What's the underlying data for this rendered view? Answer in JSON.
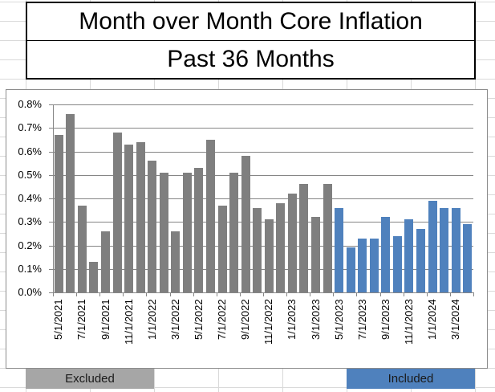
{
  "header": {
    "title": "Month over Month Core Inflation",
    "subtitle": "Past 36 Months"
  },
  "legend": {
    "excluded": {
      "label": "Excluded",
      "color": "#a6a6a6"
    },
    "included": {
      "label": "Included",
      "color": "#4f81bd"
    }
  },
  "colors": {
    "excluded_bar": "#7f7f7f",
    "included_bar": "#4f81bd",
    "gridline": "#868686"
  },
  "chart_data": {
    "type": "bar",
    "title": "Month over Month Core Inflation",
    "subtitle": "Past 36 Months",
    "xlabel": "",
    "ylabel": "",
    "ylim": [
      0,
      0.8
    ],
    "y_ticks": [
      "0.0%",
      "0.1%",
      "0.2%",
      "0.3%",
      "0.4%",
      "0.5%",
      "0.6%",
      "0.7%",
      "0.8%"
    ],
    "x_tick_labels": [
      "5/1/2021",
      "7/1/2021",
      "9/1/2021",
      "11/1/2021",
      "1/1/2022",
      "3/1/2022",
      "5/1/2022",
      "7/1/2022",
      "9/1/2022",
      "11/1/2022",
      "1/1/2023",
      "3/1/2023",
      "5/1/2023",
      "7/1/2023",
      "9/1/2023",
      "11/1/2023",
      "1/1/2024",
      "3/1/2024"
    ],
    "grid": true,
    "legend_position": "bottom",
    "categories": [
      "5/1/2021",
      "6/1/2021",
      "7/1/2021",
      "8/1/2021",
      "9/1/2021",
      "10/1/2021",
      "11/1/2021",
      "12/1/2021",
      "1/1/2022",
      "2/1/2022",
      "3/1/2022",
      "4/1/2022",
      "5/1/2022",
      "6/1/2022",
      "7/1/2022",
      "8/1/2022",
      "9/1/2022",
      "10/1/2022",
      "11/1/2022",
      "12/1/2022",
      "1/1/2023",
      "2/1/2023",
      "3/1/2023",
      "4/1/2023",
      "5/1/2023",
      "6/1/2023",
      "7/1/2023",
      "8/1/2023",
      "9/1/2023",
      "10/1/2023",
      "11/1/2023",
      "12/1/2023",
      "1/1/2024",
      "2/1/2024",
      "3/1/2024",
      "4/1/2024"
    ],
    "values": [
      0.67,
      0.76,
      0.37,
      0.13,
      0.26,
      0.68,
      0.63,
      0.64,
      0.56,
      0.51,
      0.26,
      0.51,
      0.53,
      0.65,
      0.37,
      0.51,
      0.58,
      0.36,
      0.31,
      0.38,
      0.42,
      0.46,
      0.32,
      0.46,
      0.36,
      0.19,
      0.23,
      0.23,
      0.32,
      0.24,
      0.31,
      0.27,
      0.39,
      0.36,
      0.36,
      0.29
    ],
    "series": [
      {
        "name": "Excluded",
        "color": "#7f7f7f",
        "range": [
          0,
          23
        ]
      },
      {
        "name": "Included",
        "color": "#4f81bd",
        "range": [
          24,
          35
        ]
      }
    ]
  }
}
